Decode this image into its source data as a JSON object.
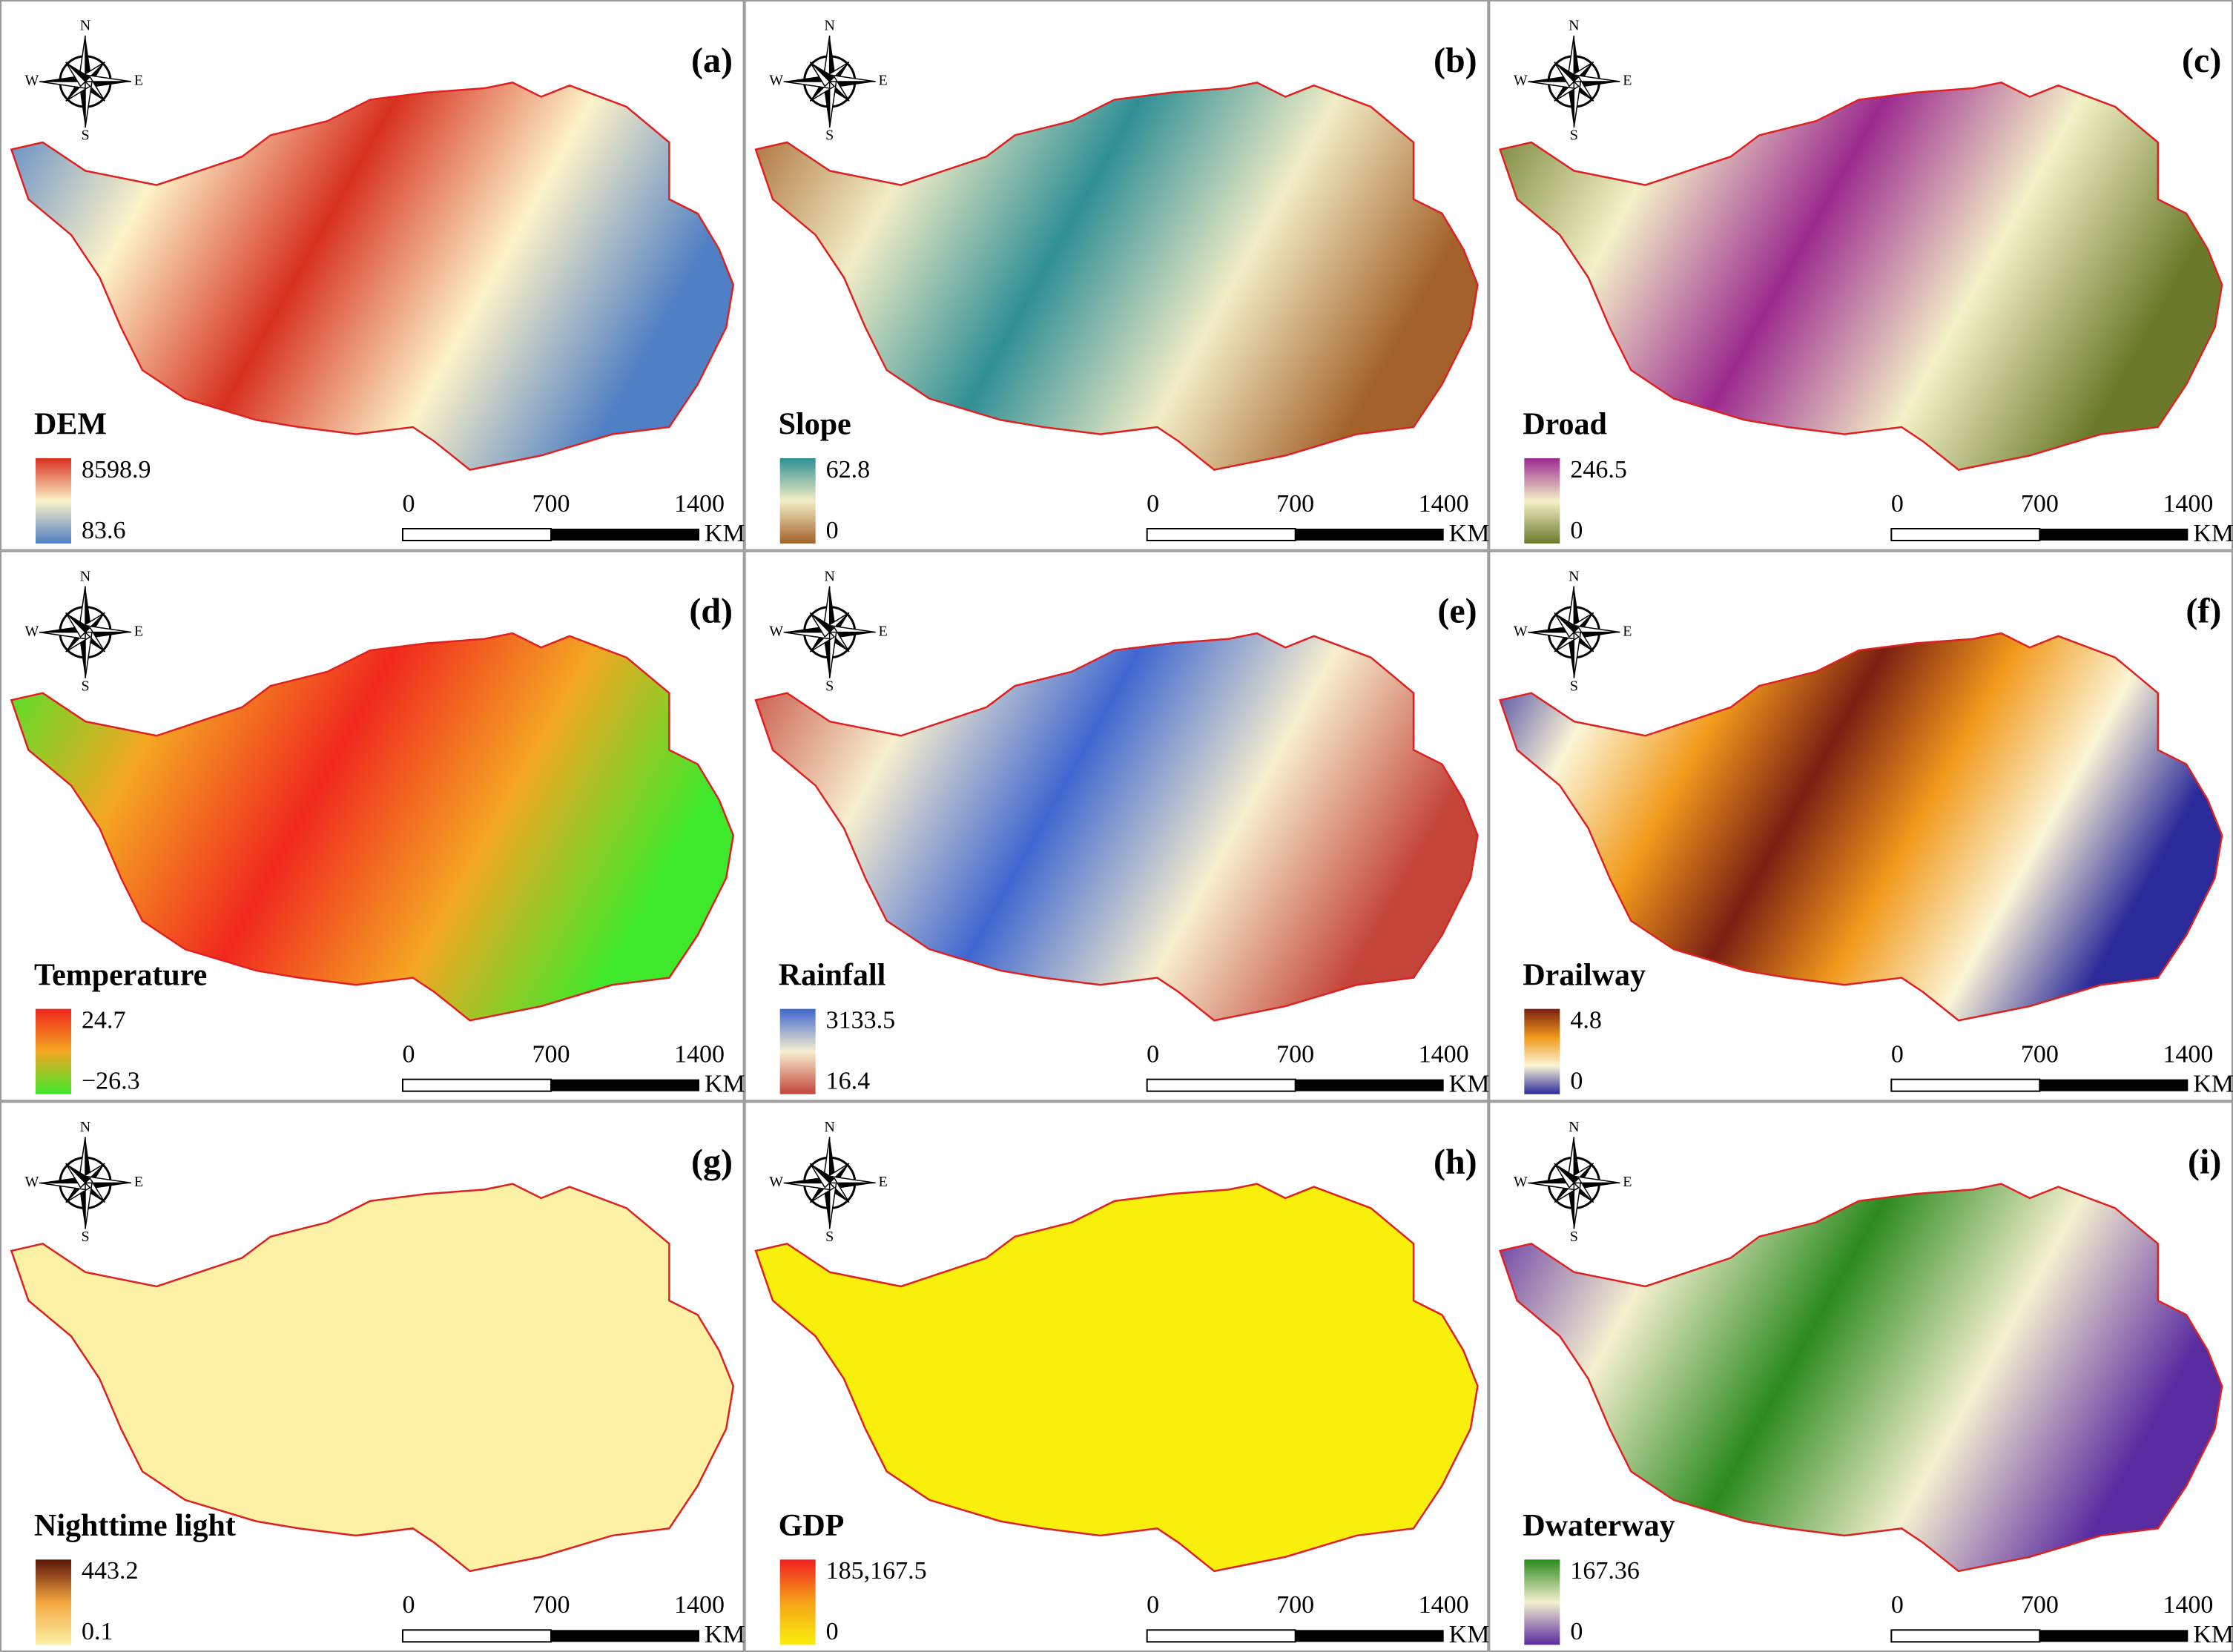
{
  "panels": [
    {
      "label": "(a)",
      "title": "DEM",
      "legend_max": "8598.9",
      "legend_min": "83.6",
      "legend_colors": [
        "#d7301f",
        "#fdf3c8",
        "#4f7fc4"
      ]
    },
    {
      "label": "(b)",
      "title": "Slope",
      "legend_max": "62.8",
      "legend_min": "0",
      "legend_colors": [
        "#2f8f95",
        "#f2edc6",
        "#a3622a"
      ]
    },
    {
      "label": "(c)",
      "title": "Droad",
      "legend_max": "246.5",
      "legend_min": "0",
      "legend_colors": [
        "#9b2a8e",
        "#f4f1c8",
        "#6b7a2a"
      ]
    },
    {
      "label": "(d)",
      "title": "Temperature",
      "legend_max": "24.7",
      "legend_min": "−26.3",
      "legend_colors": [
        "#f0281e",
        "#f5a623",
        "#3ee82a"
      ]
    },
    {
      "label": "(e)",
      "title": "Rainfall",
      "legend_max": "3133.5",
      "legend_min": "16.4",
      "legend_colors": [
        "#3f67d0",
        "#f7efcf",
        "#c4453a"
      ]
    },
    {
      "label": "(f)",
      "title": "Drailway",
      "legend_max": "4.8",
      "legend_min": "0",
      "legend_colors": [
        "#7a1f12",
        "#f29a1c",
        "#fbf5d6",
        "#2a2a9a"
      ]
    },
    {
      "label": "(g)",
      "title": "Nighttime light",
      "legend_max": "443.2",
      "legend_min": "0.1",
      "legend_colors": [
        "#5a1408",
        "#f4a640",
        "#fdf1a6"
      ]
    },
    {
      "label": "(h)",
      "title": "GDP",
      "legend_max": "185,167.5",
      "legend_min": "0",
      "legend_colors": [
        "#f01e1e",
        "#f7a21a",
        "#f8ef0a"
      ]
    },
    {
      "label": "(i)",
      "title": "Dwaterway",
      "legend_max": "167.36",
      "legend_min": "0",
      "legend_colors": [
        "#2b8a1e",
        "#f5f0d0",
        "#5a2aa0"
      ]
    }
  ],
  "scale_bar": {
    "ticks": [
      "0",
      "700",
      "1400"
    ],
    "unit": "KM"
  },
  "compass": {
    "n": "N",
    "s": "S",
    "w": "W",
    "e": "E"
  }
}
